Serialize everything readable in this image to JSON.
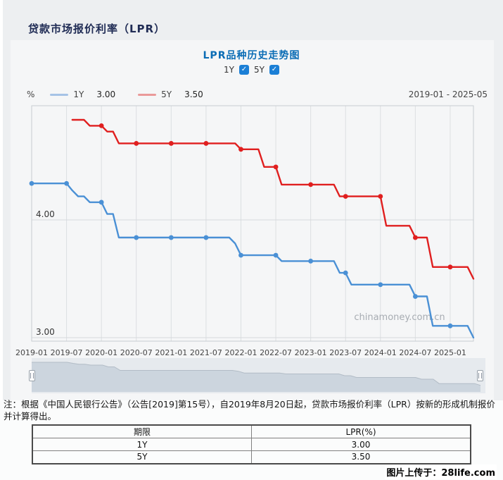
{
  "page": {
    "title": "贷款市场报价利率（LPR）",
    "footer_credit": "图片上传于：28life.com"
  },
  "chart": {
    "title": "LPR品种历史走势图",
    "controls": [
      {
        "label": "1Y",
        "checked": true
      },
      {
        "label": "5Y",
        "checked": true
      }
    ],
    "unit": "%",
    "legend": [
      {
        "label": "1Y",
        "value": "3.00",
        "swatch_color": "#a6c3e6"
      },
      {
        "label": "5Y",
        "value": "3.50",
        "swatch_color": "#ea9a9a"
      }
    ],
    "date_range": "2019-01 - 2025-05",
    "watermark": "chinamoney.com.cn"
  },
  "chart_data": {
    "type": "line",
    "title": "LPR品种历史走势图",
    "x_start": "2019-01",
    "x_end": "2025-05",
    "x_tick_labels": [
      "2019-01",
      "2019-07",
      "2020-01",
      "2020-07",
      "2021-01",
      "2021-07",
      "2022-01",
      "2022-07",
      "2023-01",
      "2023-07",
      "2024-01",
      "2024-07",
      "2025-01"
    ],
    "y_tick_labels": [
      "4.00",
      "3.00"
    ],
    "y_gridline_values": [
      4.0,
      3.0
    ],
    "ylim": [
      2.97,
      4.97
    ],
    "grid": true,
    "legend_position": "top",
    "marker_ticks_every_months": 6,
    "series": [
      {
        "name": "1Y",
        "color": "#4a90d5",
        "start_month": "2019-01",
        "monthly_values": [
          4.31,
          4.31,
          4.31,
          4.31,
          4.31,
          4.31,
          4.31,
          4.25,
          4.2,
          4.2,
          4.15,
          4.15,
          4.15,
          4.05,
          4.05,
          3.85,
          3.85,
          3.85,
          3.85,
          3.85,
          3.85,
          3.85,
          3.85,
          3.85,
          3.85,
          3.85,
          3.85,
          3.85,
          3.85,
          3.85,
          3.85,
          3.85,
          3.85,
          3.85,
          3.85,
          3.8,
          3.7,
          3.7,
          3.7,
          3.7,
          3.7,
          3.7,
          3.7,
          3.65,
          3.65,
          3.65,
          3.65,
          3.65,
          3.65,
          3.65,
          3.65,
          3.65,
          3.65,
          3.55,
          3.55,
          3.45,
          3.45,
          3.45,
          3.45,
          3.45,
          3.45,
          3.45,
          3.45,
          3.45,
          3.45,
          3.45,
          3.35,
          3.35,
          3.35,
          3.1,
          3.1,
          3.1,
          3.1,
          3.1,
          3.1,
          3.1,
          3.0
        ]
      },
      {
        "name": "5Y",
        "color": "#e01f1f",
        "start_month": "2019-08",
        "monthly_values": [
          4.85,
          4.85,
          4.85,
          4.8,
          4.8,
          4.8,
          4.75,
          4.75,
          4.65,
          4.65,
          4.65,
          4.65,
          4.65,
          4.65,
          4.65,
          4.65,
          4.65,
          4.65,
          4.65,
          4.65,
          4.65,
          4.65,
          4.65,
          4.65,
          4.65,
          4.65,
          4.65,
          4.65,
          4.65,
          4.6,
          4.6,
          4.6,
          4.6,
          4.45,
          4.45,
          4.45,
          4.3,
          4.3,
          4.3,
          4.3,
          4.3,
          4.3,
          4.3,
          4.3,
          4.3,
          4.3,
          4.2,
          4.2,
          4.2,
          4.2,
          4.2,
          4.2,
          4.2,
          4.2,
          3.95,
          3.95,
          3.95,
          3.95,
          3.95,
          3.85,
          3.85,
          3.85,
          3.6,
          3.6,
          3.6,
          3.6,
          3.6,
          3.6,
          3.6,
          3.5
        ]
      }
    ]
  },
  "note": {
    "text": "注：根据《中国人民银行公告》（公告[2019]第15号），自2019年8月20日起，贷款市场报价利率（LPR）按新的形成机制报价并计算得出。"
  },
  "table": {
    "headers": [
      "期限",
      "LPR(%)"
    ],
    "rows": [
      [
        "1Y",
        "3.00"
      ],
      [
        "5Y",
        "3.50"
      ]
    ]
  }
}
